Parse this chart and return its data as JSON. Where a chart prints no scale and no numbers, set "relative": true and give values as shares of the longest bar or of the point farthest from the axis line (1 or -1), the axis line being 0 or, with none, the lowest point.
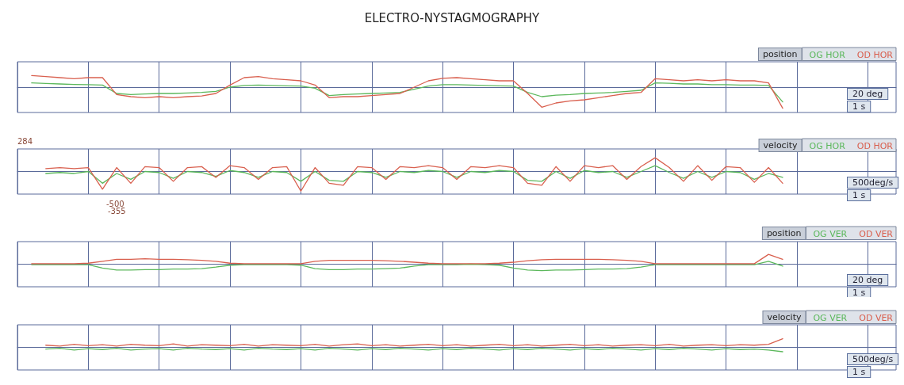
{
  "chart_data": [
    {
      "type": "line",
      "title": "ELECTRO-NYSTAGMOGRAPHY",
      "relative": true,
      "grid": true,
      "legend": "top right",
      "legend_title": "position",
      "annotations": [
        "20 deg",
        "1 s"
      ],
      "categories": [
        null,
        null,
        null,
        null,
        null,
        null,
        null,
        null,
        null,
        null,
        null,
        null,
        null,
        null,
        null,
        null,
        null,
        null,
        null,
        null,
        null,
        null,
        null,
        null,
        null,
        null,
        null,
        null,
        null,
        null,
        null,
        null,
        null,
        null,
        null,
        null,
        null,
        null,
        null,
        null,
        null,
        null,
        null,
        null,
        null,
        null,
        null,
        null,
        null,
        null,
        null,
        null,
        null,
        null,
        null,
        null,
        null,
        null,
        null,
        null,
        null,
        null,
        null
      ],
      "series": [
        {
          "name": "OG HOR",
          "color": "#5cb85c",
          "values": [
            null,
            0.2,
            0.17,
            0.15,
            0.13,
            0.12,
            0.1,
            -0.3,
            -0.35,
            -0.32,
            -0.3,
            -0.3,
            -0.28,
            -0.25,
            -0.2,
            0.0,
            0.08,
            0.1,
            0.08,
            0.06,
            0.05,
            -0.05,
            -0.4,
            -0.35,
            -0.32,
            -0.3,
            -0.28,
            -0.25,
            -0.1,
            0.05,
            0.12,
            0.12,
            0.1,
            0.08,
            0.06,
            0.05,
            -0.25,
            -0.45,
            -0.38,
            -0.35,
            -0.3,
            -0.28,
            -0.25,
            -0.2,
            -0.15,
            0.2,
            0.18,
            0.15,
            0.15,
            0.12,
            0.12,
            0.1,
            0.1,
            0.08,
            -0.7,
            null,
            null,
            null,
            null,
            null,
            null,
            null,
            null
          ]
        },
        {
          "name": "OD HOR",
          "color": "#d9604f",
          "values": [
            null,
            0.55,
            0.5,
            0.45,
            0.4,
            0.45,
            0.45,
            -0.35,
            -0.45,
            -0.5,
            -0.45,
            -0.5,
            -0.45,
            -0.42,
            -0.3,
            0.1,
            0.45,
            0.5,
            0.4,
            0.35,
            0.3,
            0.1,
            -0.5,
            -0.45,
            -0.45,
            -0.4,
            -0.35,
            -0.3,
            0.0,
            0.3,
            0.42,
            0.45,
            0.4,
            0.35,
            0.3,
            0.3,
            -0.3,
            -0.95,
            -0.75,
            -0.65,
            -0.6,
            -0.5,
            -0.4,
            -0.3,
            -0.25,
            0.4,
            0.35,
            0.3,
            0.35,
            0.3,
            0.35,
            0.3,
            0.3,
            0.2,
            -1,
            null,
            null,
            null,
            null,
            null,
            null,
            null,
            null
          ]
        }
      ]
    },
    {
      "type": "line",
      "relative": true,
      "grid": true,
      "legend": "top right",
      "legend_title": "velocity",
      "annotations": [
        "284",
        "-500",
        "-355",
        "500deg/s",
        "1 s"
      ],
      "categories": [
        null,
        null,
        null,
        null,
        null,
        null,
        null,
        null,
        null,
        null,
        null,
        null,
        null,
        null,
        null,
        null,
        null,
        null,
        null,
        null,
        null,
        null,
        null,
        null,
        null,
        null,
        null,
        null,
        null,
        null,
        null,
        null,
        null,
        null,
        null,
        null,
        null,
        null,
        null,
        null,
        null,
        null,
        null,
        null,
        null,
        null,
        null,
        null,
        null,
        null,
        null,
        null,
        null,
        null,
        null,
        null,
        null,
        null,
        null,
        null,
        null,
        null,
        null
      ],
      "series": [
        {
          "name": "OG HOR",
          "color": "#5cb85c",
          "values": [
            null,
            null,
            -0.1,
            -0.05,
            -0.1,
            0,
            -0.6,
            -0.1,
            -0.4,
            0,
            -0.05,
            -0.35,
            0,
            -0.05,
            -0.25,
            0.05,
            -0.05,
            -0.3,
            0,
            -0.05,
            -0.5,
            0,
            -0.45,
            -0.5,
            0,
            -0.05,
            -0.3,
            0,
            -0.05,
            0.05,
            0,
            -0.3,
            0,
            -0.05,
            0.05,
            0,
            -0.45,
            -0.5,
            0,
            -0.35,
            0.05,
            -0.05,
            0,
            -0.3,
            0,
            0.3,
            -0.05,
            -0.35,
            0,
            -0.3,
            0,
            -0.05,
            -0.4,
            -0.1,
            -0.3,
            null,
            null,
            null,
            null,
            null,
            null,
            null,
            null
          ]
        },
        {
          "name": "OD HOR",
          "color": "#d9604f",
          "values": [
            null,
            null,
            0.15,
            0.2,
            0.15,
            0.2,
            -0.9,
            0.2,
            -0.6,
            0.25,
            0.2,
            -0.5,
            0.2,
            0.25,
            -0.3,
            0.3,
            0.2,
            -0.4,
            0.2,
            0.25,
            -1,
            0.2,
            -0.6,
            -0.7,
            0.25,
            0.2,
            -0.4,
            0.25,
            0.2,
            0.3,
            0.2,
            -0.4,
            0.25,
            0.2,
            0.3,
            0.2,
            -0.6,
            -0.7,
            0.25,
            -0.5,
            0.3,
            0.2,
            0.3,
            -0.4,
            0.25,
            0.7,
            0.2,
            -0.5,
            0.3,
            -0.45,
            0.25,
            0.2,
            -0.55,
            0.2,
            -0.6,
            null,
            null,
            null,
            null,
            null,
            null,
            null,
            null
          ]
        }
      ]
    },
    {
      "type": "line",
      "relative": true,
      "grid": true,
      "legend": "top right",
      "legend_title": "position",
      "annotations": [
        "20 deg",
        "1 s"
      ],
      "categories": [
        null,
        null,
        null,
        null,
        null,
        null,
        null,
        null,
        null,
        null,
        null,
        null,
        null,
        null,
        null,
        null,
        null,
        null,
        null,
        null,
        null,
        null,
        null,
        null,
        null,
        null,
        null,
        null,
        null,
        null,
        null,
        null,
        null,
        null,
        null,
        null,
        null,
        null,
        null,
        null,
        null,
        null,
        null,
        null,
        null,
        null,
        null,
        null,
        null,
        null,
        null,
        null,
        null,
        null,
        null,
        null,
        null,
        null,
        null,
        null,
        null,
        null,
        null
      ],
      "series": [
        {
          "name": "OG VER",
          "color": "#5cb85c",
          "values": [
            null,
            -0.05,
            -0.05,
            -0.05,
            -0.05,
            -0.05,
            -0.4,
            -0.6,
            -0.6,
            -0.55,
            -0.55,
            -0.5,
            -0.5,
            -0.45,
            -0.3,
            -0.1,
            -0.05,
            -0.05,
            -0.05,
            -0.05,
            -0.1,
            -0.45,
            -0.55,
            -0.55,
            -0.5,
            -0.5,
            -0.45,
            -0.4,
            -0.2,
            -0.05,
            -0.05,
            -0.05,
            0,
            -0.05,
            -0.1,
            -0.4,
            -0.6,
            -0.65,
            -0.6,
            -0.6,
            -0.55,
            -0.5,
            -0.5,
            -0.45,
            -0.3,
            -0.05,
            -0.05,
            -0.05,
            -0.05,
            -0.05,
            -0.05,
            -0.05,
            -0.05,
            0.3,
            -0.2,
            null,
            null,
            null,
            null,
            null,
            null,
            null,
            null
          ]
        },
        {
          "name": "OD VER",
          "color": "#d9604f",
          "values": [
            null,
            0.05,
            0.05,
            0.05,
            0.05,
            0.1,
            0.3,
            0.5,
            0.5,
            0.55,
            0.5,
            0.5,
            0.45,
            0.4,
            0.3,
            0.1,
            0.05,
            0.05,
            0.05,
            0.05,
            0.05,
            0.3,
            0.4,
            0.4,
            0.4,
            0.4,
            0.35,
            0.3,
            0.2,
            0.1,
            0.05,
            0.05,
            0.05,
            0.05,
            0.1,
            0.2,
            0.35,
            0.45,
            0.5,
            0.5,
            0.5,
            0.5,
            0.45,
            0.4,
            0.3,
            0.05,
            0.05,
            0.05,
            0.05,
            0.05,
            0.05,
            0.05,
            0.05,
            1,
            0.5,
            null,
            null,
            null,
            null,
            null,
            null,
            null,
            null
          ]
        }
      ]
    },
    {
      "type": "line",
      "relative": true,
      "grid": true,
      "legend": "top right",
      "legend_title": "velocity",
      "annotations": [
        "500deg/s",
        "1 s"
      ],
      "categories": [
        null,
        null,
        null,
        null,
        null,
        null,
        null,
        null,
        null,
        null,
        null,
        null,
        null,
        null,
        null,
        null,
        null,
        null,
        null,
        null,
        null,
        null,
        null,
        null,
        null,
        null,
        null,
        null,
        null,
        null,
        null,
        null,
        null,
        null,
        null,
        null,
        null,
        null,
        null,
        null,
        null,
        null,
        null,
        null,
        null,
        null,
        null,
        null,
        null,
        null,
        null,
        null,
        null,
        null,
        null,
        null,
        null,
        null,
        null,
        null,
        null,
        null,
        null
      ],
      "series": [
        {
          "name": "OG VER",
          "color": "#5cb85c",
          "values": [
            null,
            null,
            -0.2,
            -0.1,
            -0.3,
            -0.15,
            -0.25,
            -0.1,
            -0.3,
            -0.2,
            -0.15,
            -0.3,
            -0.1,
            -0.2,
            -0.25,
            -0.15,
            -0.3,
            -0.1,
            -0.2,
            -0.25,
            -0.15,
            -0.3,
            -0.1,
            -0.2,
            -0.3,
            -0.15,
            -0.25,
            -0.1,
            -0.2,
            -0.3,
            -0.15,
            -0.25,
            -0.1,
            -0.2,
            -0.3,
            -0.15,
            -0.25,
            -0.1,
            -0.2,
            -0.3,
            -0.15,
            -0.25,
            -0.1,
            -0.2,
            -0.3,
            -0.15,
            -0.25,
            -0.1,
            -0.2,
            -0.3,
            -0.15,
            -0.25,
            -0.2,
            -0.3,
            -0.5,
            null,
            null,
            null,
            null,
            null,
            null,
            null,
            null
          ]
        },
        {
          "name": "OD VER",
          "color": "#d9604f",
          "values": [
            null,
            null,
            0.25,
            0.15,
            0.35,
            0.2,
            0.3,
            0.15,
            0.35,
            0.25,
            0.2,
            0.4,
            0.15,
            0.3,
            0.25,
            0.2,
            0.35,
            0.15,
            0.3,
            0.25,
            0.2,
            0.35,
            0.15,
            0.3,
            0.4,
            0.2,
            0.3,
            0.15,
            0.25,
            0.35,
            0.2,
            0.3,
            0.15,
            0.25,
            0.35,
            0.2,
            0.3,
            0.15,
            0.25,
            0.35,
            0.2,
            0.3,
            0.15,
            0.25,
            0.3,
            0.2,
            0.35,
            0.15,
            0.25,
            0.3,
            0.2,
            0.3,
            0.25,
            0.35,
            1,
            null,
            null,
            null,
            null,
            null,
            null,
            null,
            null
          ]
        }
      ]
    }
  ]
}
